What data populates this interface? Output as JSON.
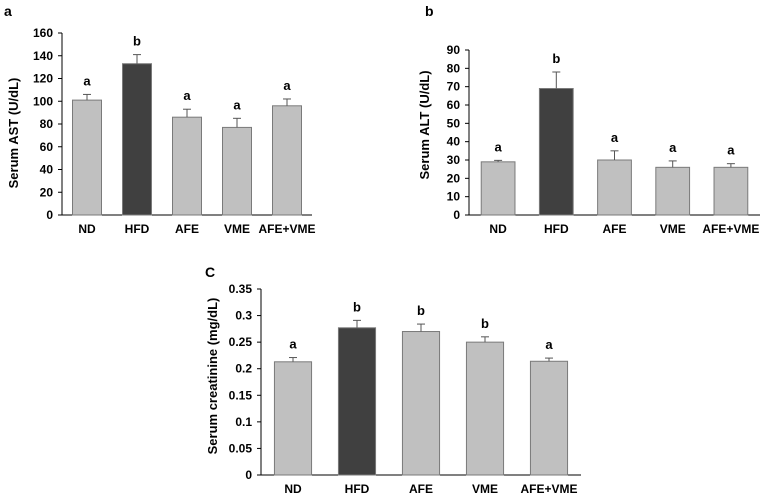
{
  "colors": {
    "light_bar": "#c0c0c0",
    "dark_bar": "#404040",
    "bar_stroke": "#7a7a7a"
  },
  "chart_data": [
    {
      "type": "bar",
      "panel": "a",
      "title": "",
      "xlabel": "",
      "ylabel": "Serum AST  (U/dL)",
      "categories": [
        "ND",
        "HFD",
        "AFE",
        "VME",
        "AFE+VME"
      ],
      "values": [
        101,
        133,
        86,
        77,
        96
      ],
      "errors": [
        5,
        8,
        7,
        8,
        6
      ],
      "annotations": [
        "a",
        "b",
        "a",
        "a",
        "a"
      ],
      "highlight": [
        false,
        true,
        false,
        false,
        false
      ],
      "ylim": [
        0,
        160
      ],
      "yticks": [
        "0",
        "20",
        "40",
        "60",
        "80",
        "100",
        "120",
        "140",
        "160"
      ]
    },
    {
      "type": "bar",
      "panel": "b",
      "title": "",
      "xlabel": "",
      "ylabel": "Serum ALT  (U/dL)",
      "categories": [
        "ND",
        "HFD",
        "AFE",
        "VME",
        "AFE+VME"
      ],
      "values": [
        29,
        69,
        30,
        26,
        26
      ],
      "errors": [
        0.8,
        9,
        5,
        3.5,
        2
      ],
      "annotations": [
        "a",
        "b",
        "a",
        "a",
        "a"
      ],
      "highlight": [
        false,
        true,
        false,
        false,
        false
      ],
      "ylim": [
        0,
        90
      ],
      "yticks": [
        "0",
        "10",
        "20",
        "30",
        "40",
        "50",
        "60",
        "70",
        "80",
        "90"
      ]
    },
    {
      "type": "bar",
      "panel": "C",
      "title": "",
      "xlabel": "",
      "ylabel": "Serum creatinine (mg/dL)",
      "categories": [
        "ND",
        "HFD",
        "AFE",
        "VME",
        "AFE+VME"
      ],
      "values": [
        0.213,
        0.277,
        0.27,
        0.25,
        0.214
      ],
      "errors": [
        0.008,
        0.014,
        0.014,
        0.01,
        0.006
      ],
      "annotations": [
        "a",
        "b",
        "b",
        "b",
        "a"
      ],
      "highlight": [
        false,
        true,
        false,
        false,
        false
      ],
      "ylim": [
        0,
        0.35
      ],
      "yticks": [
        "0",
        "0.05",
        "0.1",
        "0.15",
        "0.2",
        "0.25",
        "0.3",
        "0.35"
      ]
    }
  ]
}
